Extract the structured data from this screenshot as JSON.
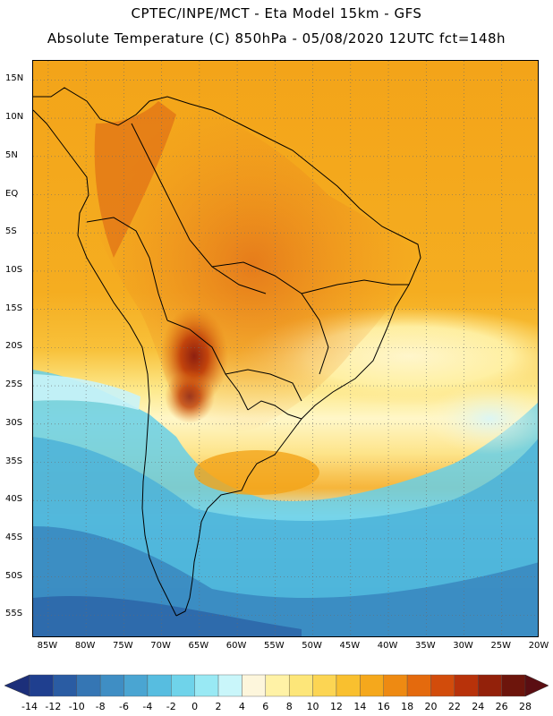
{
  "header": {
    "line1": "CPTEC/INPE/MCT -  Eta Model 15km - GFS",
    "line2": "Absolute Temperature (C) 850hPa - 05/08/2020 12UTC fct=148h"
  },
  "map": {
    "region": "South America",
    "lat_labels": [
      "15N",
      "10N",
      "5N",
      "EQ",
      "5S",
      "10S",
      "15S",
      "20S",
      "25S",
      "30S",
      "35S",
      "40S",
      "45S",
      "50S",
      "55S"
    ],
    "lon_labels": [
      "85W",
      "80W",
      "75W",
      "70W",
      "65W",
      "60W",
      "55W",
      "50W",
      "45W",
      "40W",
      "35W",
      "30W",
      "25W",
      "20W"
    ],
    "lat_values": [
      15,
      10,
      5,
      0,
      -5,
      -10,
      -15,
      -20,
      -25,
      -30,
      -35,
      -40,
      -45,
      -50,
      -55
    ],
    "lon_values": [
      -85,
      -80,
      -75,
      -70,
      -65,
      -60,
      -55,
      -50,
      -45,
      -40,
      -35,
      -30,
      -25,
      -20
    ]
  },
  "colorbar": {
    "ticks": [
      "-14",
      "-12",
      "-10",
      "-8",
      "-6",
      "-4",
      "-2",
      "0",
      "2",
      "4",
      "6",
      "8",
      "10",
      "12",
      "14",
      "16",
      "18",
      "20",
      "22",
      "24",
      "26",
      "28"
    ],
    "colors": [
      "#1f3f8f",
      "#2a5ca3",
      "#3576b4",
      "#3f8ec4",
      "#4aa5d2",
      "#57bde0",
      "#6fd3ea",
      "#99e9f4",
      "#c9f6fa",
      "#fdf6dc",
      "#fff2a6",
      "#fde679",
      "#fcd553",
      "#f9c02f",
      "#f5a81c",
      "#ee8a12",
      "#e46a0d",
      "#d24c0b",
      "#b8320a",
      "#93210a",
      "#6d150c"
    ],
    "left_arrow_color": "#1c2f7a",
    "right_arrow_color": "#5a0e12"
  }
}
